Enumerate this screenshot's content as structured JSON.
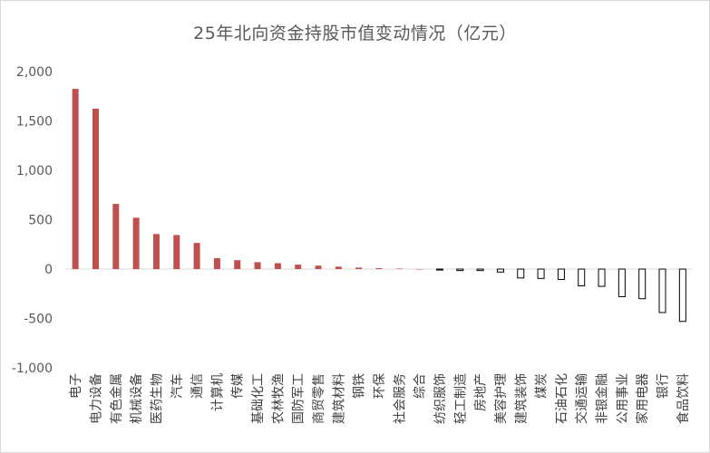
{
  "chart_data": {
    "type": "bar",
    "title": "25年北向资金持股市值变动情况（亿元）",
    "xlabel": "",
    "ylabel": "",
    "ylim": [
      -1000,
      2000
    ],
    "yticks": [
      2000,
      1500,
      1000,
      500,
      0,
      -500,
      -1000
    ],
    "ytick_labels": [
      "2,000",
      "1,500",
      "1,000",
      "500",
      "0",
      "-500",
      "-1,000"
    ],
    "grid": false,
    "legend": "none",
    "colors": {
      "positive": "#c0504d",
      "negative_fill": "#ffffff",
      "negative_stroke": "#000000",
      "axis": "#d9d9d9",
      "text": "#595959"
    },
    "categories": [
      "电子",
      "电力设备",
      "有色金属",
      "机械设备",
      "医药生物",
      "汽车",
      "通信",
      "计算机",
      "传媒",
      "基础化工",
      "农林牧渔",
      "国防军工",
      "商贸零售",
      "建筑材料",
      "钢铁",
      "环保",
      "社会服务",
      "综合",
      "纺织服饰",
      "轻工制造",
      "房地产",
      "美容护理",
      "建筑装饰",
      "煤炭",
      "石油石化",
      "交通运输",
      "非银金融",
      "公用事业",
      "家用电器",
      "银行",
      "食品饮料"
    ],
    "values": [
      1825,
      1625,
      660,
      520,
      355,
      345,
      265,
      110,
      90,
      70,
      60,
      45,
      35,
      25,
      15,
      10,
      5,
      0,
      -10,
      -15,
      -15,
      -30,
      -90,
      -95,
      -105,
      -170,
      -175,
      -280,
      -300,
      -440,
      -530
    ]
  }
}
